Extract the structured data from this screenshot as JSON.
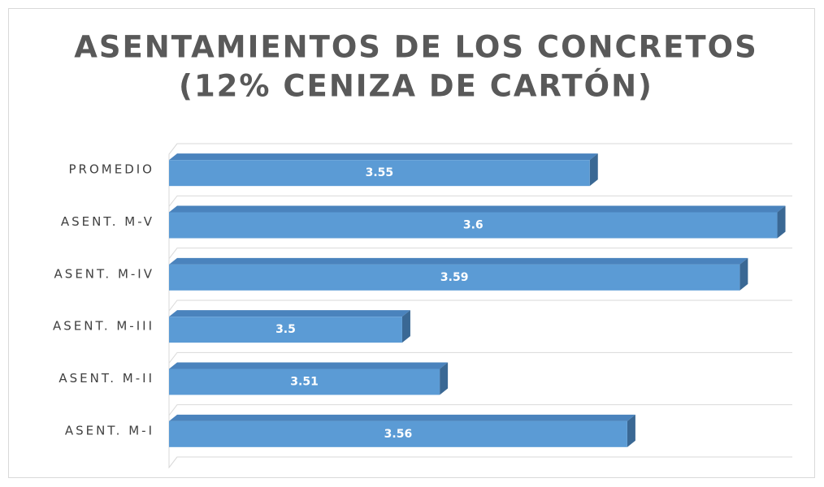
{
  "chart_data": {
    "type": "bar",
    "orientation": "horizontal",
    "title": [
      "ASENTAMIENTOS DE LOS CONCRETOS",
      "(12% CENIZA DE CARTÓN)"
    ],
    "categories": [
      "PROMEDIO",
      "ASENT. M-V",
      "ASENT. M-IV",
      "ASENT. M-III",
      "ASENT. M-II",
      "ASENT. M-I"
    ],
    "values": [
      3.55,
      3.6,
      3.59,
      3.5,
      3.51,
      3.56
    ],
    "color": "#5b9bd5",
    "xlim": [
      3.44,
      3.604
    ],
    "grid": true
  }
}
